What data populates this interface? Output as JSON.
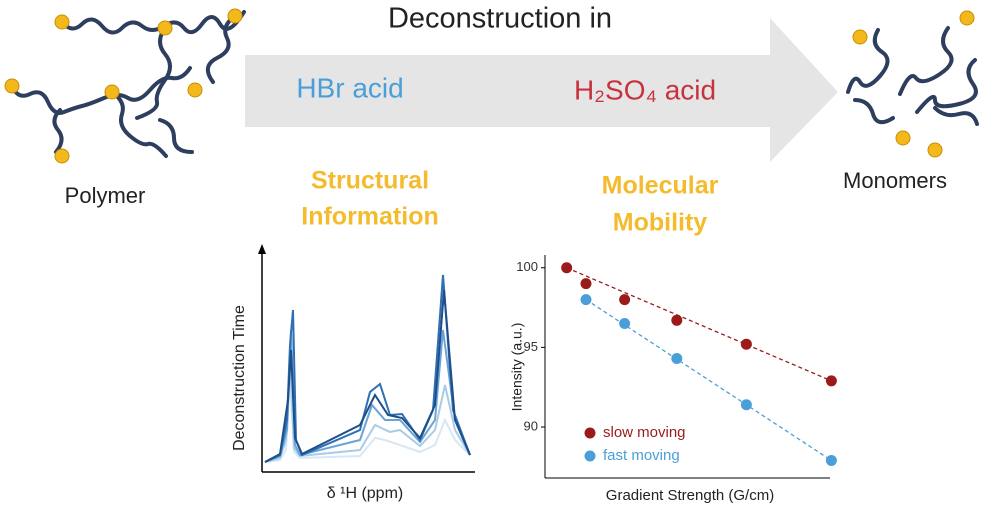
{
  "diagram": {
    "title": "Deconstruction in",
    "acids": [
      "HBr acid",
      "H₂SO₄ acid"
    ],
    "left_label": "Polymer",
    "right_label": "Monomers",
    "left_heading": [
      "Structural",
      "Information"
    ],
    "right_heading": [
      "Molecular",
      "Mobility"
    ],
    "spectrum_y_label": "Deconstruction Time",
    "spectrum_x_label": "δ ¹H (ppm)"
  },
  "chart_data": {
    "type": "scatter",
    "ylabel": "Intensity (a.u.)",
    "xlabel": "Gradient Strength (G/cm)",
    "ylim": [
      86.8,
      100.8
    ],
    "yticks": [
      90,
      95,
      100
    ],
    "xlim": [
      -0.5,
      14.3
    ],
    "series": [
      {
        "name": "slow moving",
        "color": "#9b1b1b",
        "x": [
          0,
          1,
          3,
          5.7,
          9.3,
          13.7
        ],
        "values": [
          100,
          99.0,
          98.0,
          96.7,
          95.2,
          92.9
        ]
      },
      {
        "name": "fast moving",
        "color": "#4a9fd8",
        "x": [
          1,
          3,
          5.7,
          9.3,
          13.7
        ],
        "values": [
          98.0,
          96.5,
          94.3,
          91.4,
          87.9
        ]
      }
    ]
  }
}
